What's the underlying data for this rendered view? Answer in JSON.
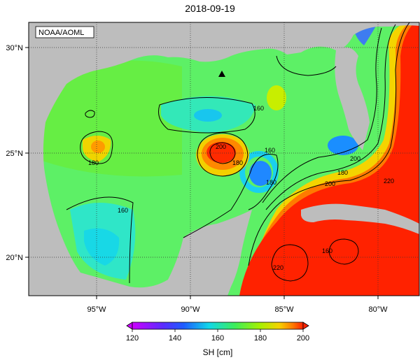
{
  "title": "2018-09-19",
  "credit": "NOAA/AOML",
  "lon_ticks": [
    "95°W",
    "90°W",
    "85°W",
    "80°W"
  ],
  "lat_ticks": [
    "30°N",
    "25°N",
    "20°N"
  ],
  "contour_labels": [
    "160",
    "180",
    "200",
    "160",
    "180",
    "160",
    "180",
    "200",
    "220",
    "200",
    "220",
    "180",
    "160"
  ],
  "colorbar": {
    "ticks": [
      "120",
      "140",
      "160",
      "180",
      "200"
    ],
    "label": "SH [cm]"
  },
  "colors": {
    "land": "#bdbdbd",
    "c120": "#cc00ff",
    "c140": "#1e5cff",
    "c160": "#11e0e0",
    "c170": "#44ee44",
    "c180": "#8df000",
    "c190": "#f6d200",
    "c200": "#ff2200"
  }
}
